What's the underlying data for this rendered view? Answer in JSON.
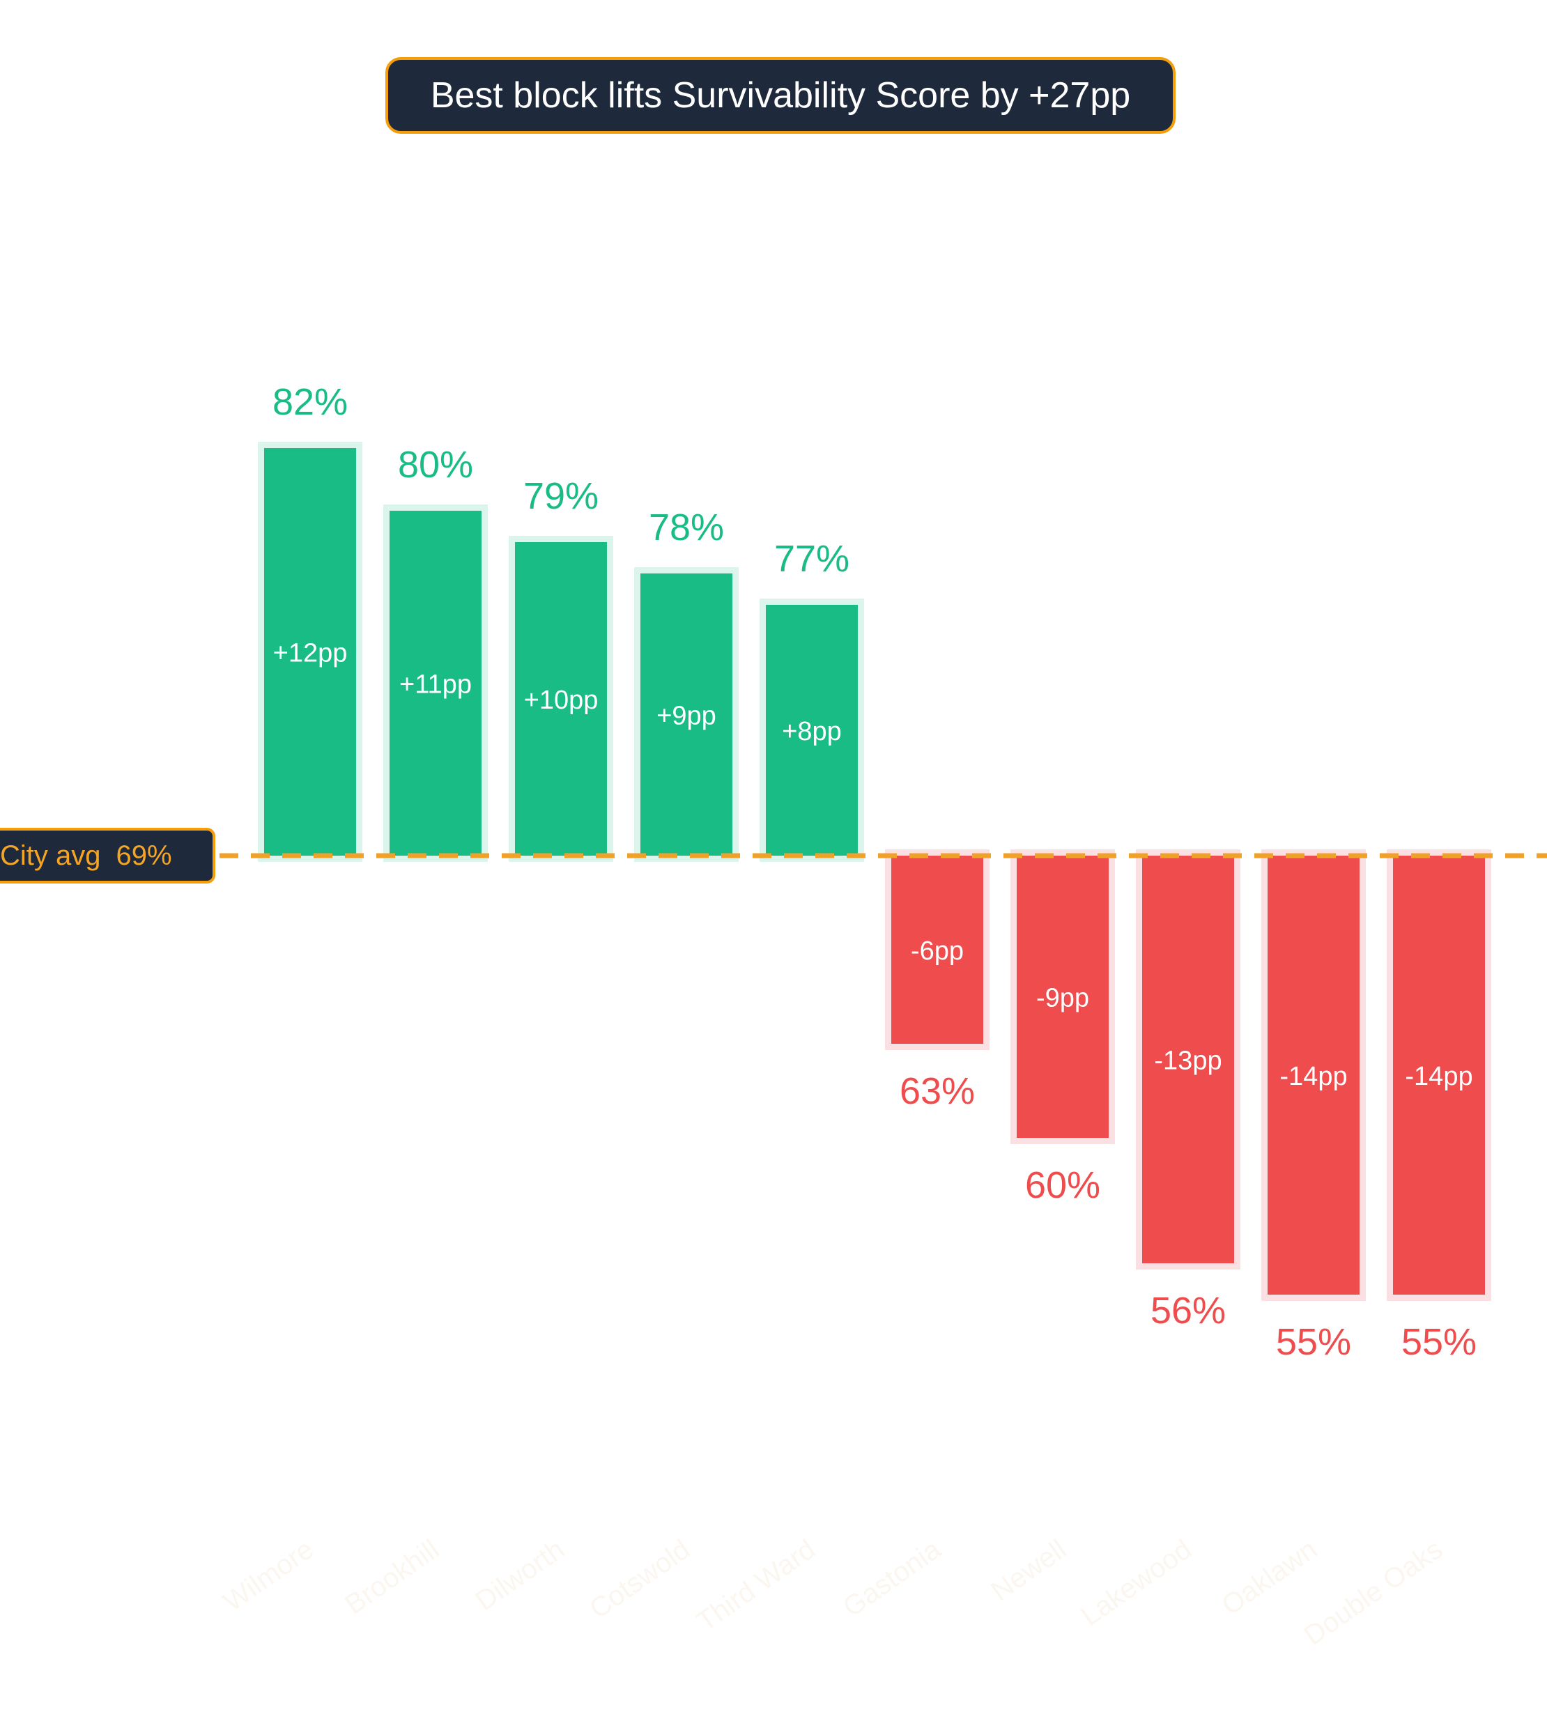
{
  "chart_data": {
    "type": "bar",
    "title": "Best block lifts Survivability Score by +27pp",
    "baseline": {
      "label": "City avg",
      "value": 69,
      "value_label": "69%"
    },
    "categories": [
      "Wilmore",
      "Brookhill",
      "Dilworth",
      "Cotswold",
      "Third Ward",
      "Gastonia",
      "Newell",
      "Lakewood",
      "Oaklawn",
      "Double Oaks"
    ],
    "values": [
      82,
      80,
      79,
      78,
      77,
      63,
      60,
      56,
      55,
      55
    ],
    "value_labels": [
      "82%",
      "80%",
      "79%",
      "78%",
      "77%",
      "63%",
      "60%",
      "56%",
      "55%",
      "55%"
    ],
    "delta_labels": [
      "+12pp",
      "+11pp",
      "+10pp",
      "+9pp",
      "+8pp",
      "-6pp",
      "-9pp",
      "-13pp",
      "-14pp",
      "-14pp"
    ],
    "ylabel": "",
    "xlabel": "",
    "grid": false
  },
  "colors": {
    "positive": "#1abc85",
    "positive_halo": "#dcf5ec",
    "negative": "#ef4c4e",
    "negative_halo": "#fbe0e3",
    "baseline": "#f0a12a",
    "title_bg": "#1e293b",
    "title_border": "#f59e0b",
    "category_label": "#fbf6f0"
  }
}
